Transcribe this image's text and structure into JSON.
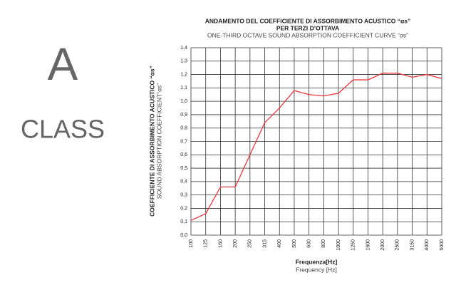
{
  "badge": {
    "letter": "A",
    "text": "CLASS"
  },
  "chart_data": {
    "type": "line",
    "title": [
      "ANDAMENTO DEL COEFFICIENTE DI ASSORBIMENTO ACUSTICO “αs”",
      "PER TERZI D’OTTAVA"
    ],
    "subtitle": "ONE-THIRD OCTAVE SOUND ABSORPTION COEFFICIENT CURVE “αs”",
    "y_label": [
      "COEFFICIENTE DI ASSORBIMENTO ACUSTICO “αs”",
      "SOUND ABSORPTION COEFFICIENT“αs”"
    ],
    "x_label": [
      "Frequenza[Hz]",
      "Frequency [Hz]"
    ],
    "categories": [
      "100",
      "125",
      "160",
      "200",
      "250",
      "315",
      "400",
      "500",
      "630",
      "800",
      "1000",
      "1250",
      "1600",
      "2000",
      "2500",
      "3150",
      "4000",
      "5000"
    ],
    "values": [
      0.11,
      0.16,
      0.36,
      0.36,
      0.6,
      0.84,
      0.95,
      1.08,
      1.05,
      1.04,
      1.06,
      1.16,
      1.16,
      1.21,
      1.21,
      1.18,
      1.2,
      1.17
    ],
    "color": "#e8383d",
    "ylim": [
      0,
      1.4
    ],
    "yticks": [
      {
        "value": 0,
        "label": "0,0"
      },
      {
        "value": 0.1,
        "label": "0,1"
      },
      {
        "value": 0.2,
        "label": "0,2"
      },
      {
        "value": 0.3,
        "label": "0,3"
      },
      {
        "value": 0.4,
        "label": "0,4"
      },
      {
        "value": 0.5,
        "label": "0,5"
      },
      {
        "value": 0.6,
        "label": "0,6"
      },
      {
        "value": 0.7,
        "label": "0,7"
      },
      {
        "value": 0.8,
        "label": "0,8"
      },
      {
        "value": 0.9,
        "label": "0,9"
      },
      {
        "value": 1.0,
        "label": "1,0"
      },
      {
        "value": 1.1,
        "label": "1,1"
      },
      {
        "value": 1.2,
        "label": "1,2"
      },
      {
        "value": 1.3,
        "label": "1,3"
      },
      {
        "value": 1.4,
        "label": "1,4"
      }
    ],
    "grid": true
  }
}
